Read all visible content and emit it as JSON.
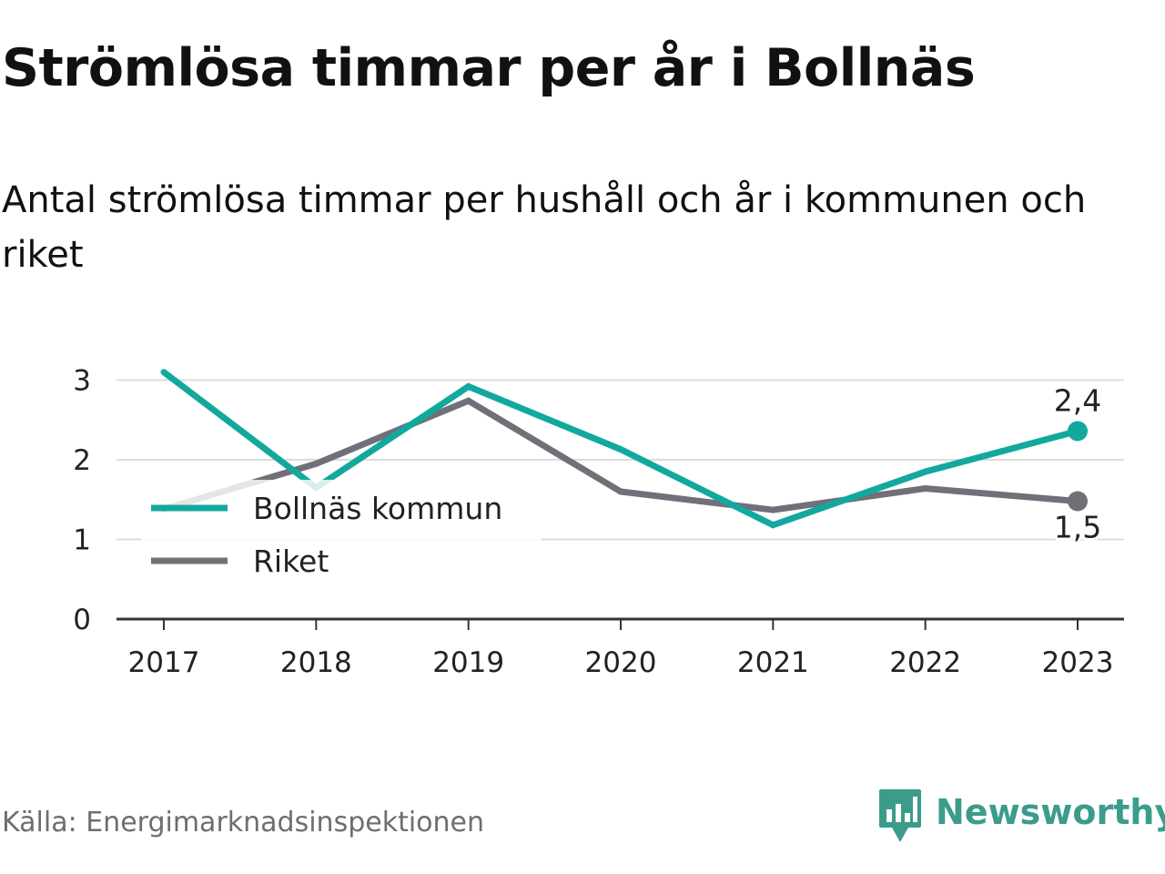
{
  "title": "Strömlösa timmar per år i Bollnäs",
  "subtitle": "Antal strömlösa timmar per hushåll och år i kommunen och riket",
  "source": "Källa: Energimarknadsinspektionen",
  "brand": {
    "name": "Newsworthy",
    "color": "#3b9c8c",
    "icon": "newsworthy-logo-icon"
  },
  "chart_data": {
    "type": "line",
    "x": [
      "2017",
      "2018",
      "2019",
      "2020",
      "2021",
      "2022",
      "2023"
    ],
    "ylim": [
      0,
      3.2
    ],
    "yticks": [
      0,
      1,
      2,
      3
    ],
    "grid": true,
    "legend_position": "left",
    "series": [
      {
        "name": "Bollnäs kommun",
        "color": "#13a89e",
        "values": [
          3.1,
          1.65,
          2.92,
          2.13,
          1.18,
          1.85,
          2.36
        ],
        "end_label": "2,4"
      },
      {
        "name": "Riket",
        "color": "#707078",
        "values": [
          1.38,
          1.95,
          2.74,
          1.6,
          1.37,
          1.64,
          1.48
        ],
        "end_label": "1,5"
      }
    ]
  }
}
